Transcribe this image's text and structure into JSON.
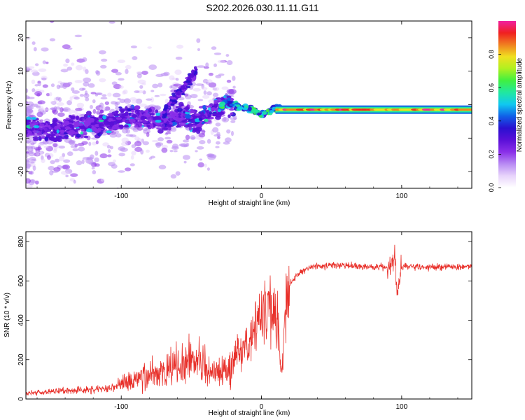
{
  "title": "S202.2026.030.11.11.G11",
  "colors": {
    "line": "#e8302a",
    "spectrogram_ramp": [
      "#ffffff",
      "#e7d3fb",
      "#b88af3",
      "#8a2fe8",
      "#5a10d8",
      "#2a10d0",
      "#1060e8",
      "#10c8f0",
      "#20e8a0",
      "#40f040",
      "#b0f020",
      "#f0e020",
      "#f08020",
      "#f02020",
      "#f020a0"
    ]
  },
  "chart_data": [
    {
      "type": "heatmap",
      "title": "S202.2026.030.11.11.G11",
      "xlabel": "Height of straight line (km)",
      "ylabel": "Frequency (Hz)",
      "xlim": [
        -168,
        150
      ],
      "ylim": [
        -25,
        25
      ],
      "xticks": [
        -100,
        0,
        100
      ],
      "yticks": [
        -20,
        -10,
        0,
        10,
        20
      ],
      "colorbar": {
        "label": "Normalized spectral amplitude",
        "range": [
          0,
          1
        ],
        "ticks": [
          "0.0",
          "0.2",
          "0.4",
          "0.6",
          "0.8"
        ]
      },
      "ridge": {
        "x": [
          -165,
          -150,
          -135,
          -120,
          -105,
          -90,
          -80,
          -70,
          -62,
          -55,
          -48,
          -40,
          -35,
          -30,
          -25,
          -20,
          -15,
          -10,
          -5,
          0,
          5,
          10,
          20,
          40,
          60,
          80,
          100,
          120,
          150
        ],
        "y": [
          -7,
          -8,
          -7,
          -6,
          -5,
          -3,
          -3.5,
          -5,
          -4,
          -3,
          -5,
          -3,
          -2,
          -1,
          1,
          0,
          -1,
          -1,
          -2,
          -3,
          -2,
          -1,
          -1.5,
          -1.5,
          -1.5,
          -1.5,
          -1.5,
          -1.5,
          -1.5
        ]
      },
      "branch": {
        "x": [
          -70,
          -62,
          -55,
          -50,
          -46
        ],
        "y": [
          -3,
          2,
          5,
          8,
          10
        ]
      }
    },
    {
      "type": "line",
      "xlabel": "Height of straight line (km)",
      "ylabel": "SNR (10 * v/v)",
      "xlim": [
        -168,
        150
      ],
      "ylim": [
        0,
        850
      ],
      "xticks": [
        -100,
        0,
        100
      ],
      "yticks": [
        0,
        200,
        400,
        600,
        800
      ],
      "series": [
        {
          "name": "SNR",
          "x": [
            -168,
            -150,
            -130,
            -110,
            -95,
            -85,
            -75,
            -65,
            -55,
            -45,
            -35,
            -25,
            -18,
            -12,
            -5,
            0,
            5,
            8,
            12,
            14,
            18,
            25,
            35,
            50,
            70,
            85,
            90,
            95,
            97,
            100,
            110,
            130,
            150
          ],
          "y": [
            30,
            45,
            50,
            65,
            95,
            130,
            160,
            185,
            210,
            235,
            150,
            170,
            260,
            300,
            400,
            500,
            560,
            560,
            400,
            150,
            560,
            630,
            670,
            680,
            675,
            670,
            660,
            720,
            530,
            675,
            670,
            670,
            675
          ]
        }
      ]
    }
  ]
}
